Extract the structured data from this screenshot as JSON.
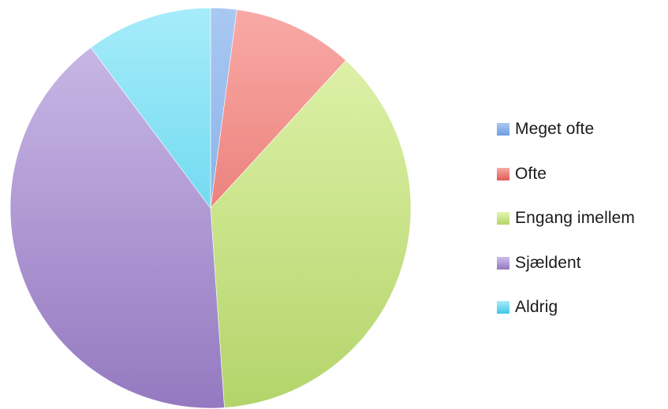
{
  "chart_data": {
    "type": "pie",
    "title": "",
    "categories": [
      "Meget ofte",
      "Ofte",
      "Engang imellem",
      "Sjældent",
      "Aldrig"
    ],
    "values": [
      2.1,
      9.7,
      37.1,
      40.9,
      10.2
    ],
    "unit": "percent (estimated)",
    "start_angle_deg": 0,
    "direction": "clockwise",
    "legend": {
      "placement": "right"
    },
    "colors": [
      {
        "light": "#a9c8f2",
        "dark": "#6f9ee0"
      },
      {
        "light": "#f9aaa6",
        "dark": "#df5b55"
      },
      {
        "light": "#e3f5b0",
        "dark": "#b3d46a"
      },
      {
        "light": "#cdbde9",
        "dark": "#9479c0"
      },
      {
        "light": "#a6ecfa",
        "dark": "#3fc9e6"
      }
    ]
  }
}
